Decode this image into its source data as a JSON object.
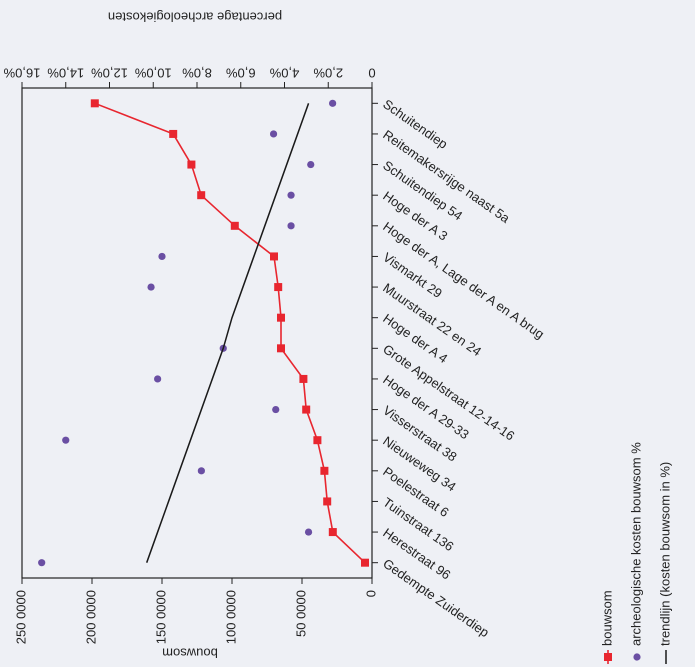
{
  "chart_data": {
    "type": "line",
    "categories": [
      "Gedempte Zuiderdiep",
      "Herestraat 96",
      "Tuinstraat 136",
      "Poelestraat 6",
      "Nieuweweg 34",
      "Visserstraat 38",
      "Hoge der A 29-33",
      "Grote Appelstraat 12-14-16",
      "Hoge der A 4",
      "Muurstraat 22 en 24",
      "Vismarkt 29",
      "Hoge der A, Lage der A en A brug",
      "Hoge der A 3",
      "Schuitendiep 54",
      "Reitemakersrijge naast 5a",
      "Schuitendiep"
    ],
    "ylabel": "bouwsom",
    "y2label": "percentage archeologiekosten",
    "ylim": [
      0,
      250000
    ],
    "yticks": [
      0,
      {
        "value": 50000,
        "label": "50 0000"
      },
      {
        "value": 100000,
        "label": "100 0000"
      },
      {
        "value": 150000,
        "label": "150 0000"
      },
      {
        "value": 200000,
        "label": "200 0000"
      },
      {
        "value": 250000,
        "label": "250 0000"
      }
    ],
    "y2lim": [
      0,
      16
    ],
    "y2ticks": [
      0,
      {
        "value": 2,
        "label": "2,0%"
      },
      {
        "value": 4,
        "label": "4,0%"
      },
      {
        "value": 6,
        "label": "6,0%"
      },
      {
        "value": 8,
        "label": "8,0%"
      },
      {
        "value": 10,
        "label": "10,0%"
      },
      {
        "value": 12,
        "label": "12,0%"
      },
      {
        "value": 14,
        "label": "14,0%"
      },
      {
        "value": 16,
        "label": "16,0%"
      }
    ],
    "legend": "bottom-right",
    "series": [
      {
        "name": "bouwsom",
        "color": "#e8262f",
        "style": "line-square",
        "axis": "y",
        "values": [
          5000,
          28000,
          32000,
          34000,
          39000,
          47000,
          49000,
          65000,
          65000,
          67000,
          70000,
          98000,
          122000,
          129000,
          142000,
          198000
        ]
      },
      {
        "name": "archeologische kosten bouwsom %",
        "color": "#6a4fa3",
        "style": "dot",
        "axis": "y2",
        "values": [
          15.1,
          2.9,
          null,
          7.8,
          14.0,
          4.4,
          9.8,
          6.8,
          null,
          10.1,
          9.6,
          3.7,
          3.7,
          2.8,
          4.5,
          1.8
        ]
      },
      {
        "name": "trendlijn (kosten bouwsom in %)",
        "color": "#1a1a1a",
        "style": "line",
        "axis": "y2",
        "values": [
          10.3,
          9.8,
          9.3,
          8.8,
          8.3,
          7.8,
          7.3,
          6.8,
          6.4,
          5.9,
          5.4,
          4.9,
          4.4,
          3.9,
          3.4,
          2.9
        ]
      }
    ]
  }
}
